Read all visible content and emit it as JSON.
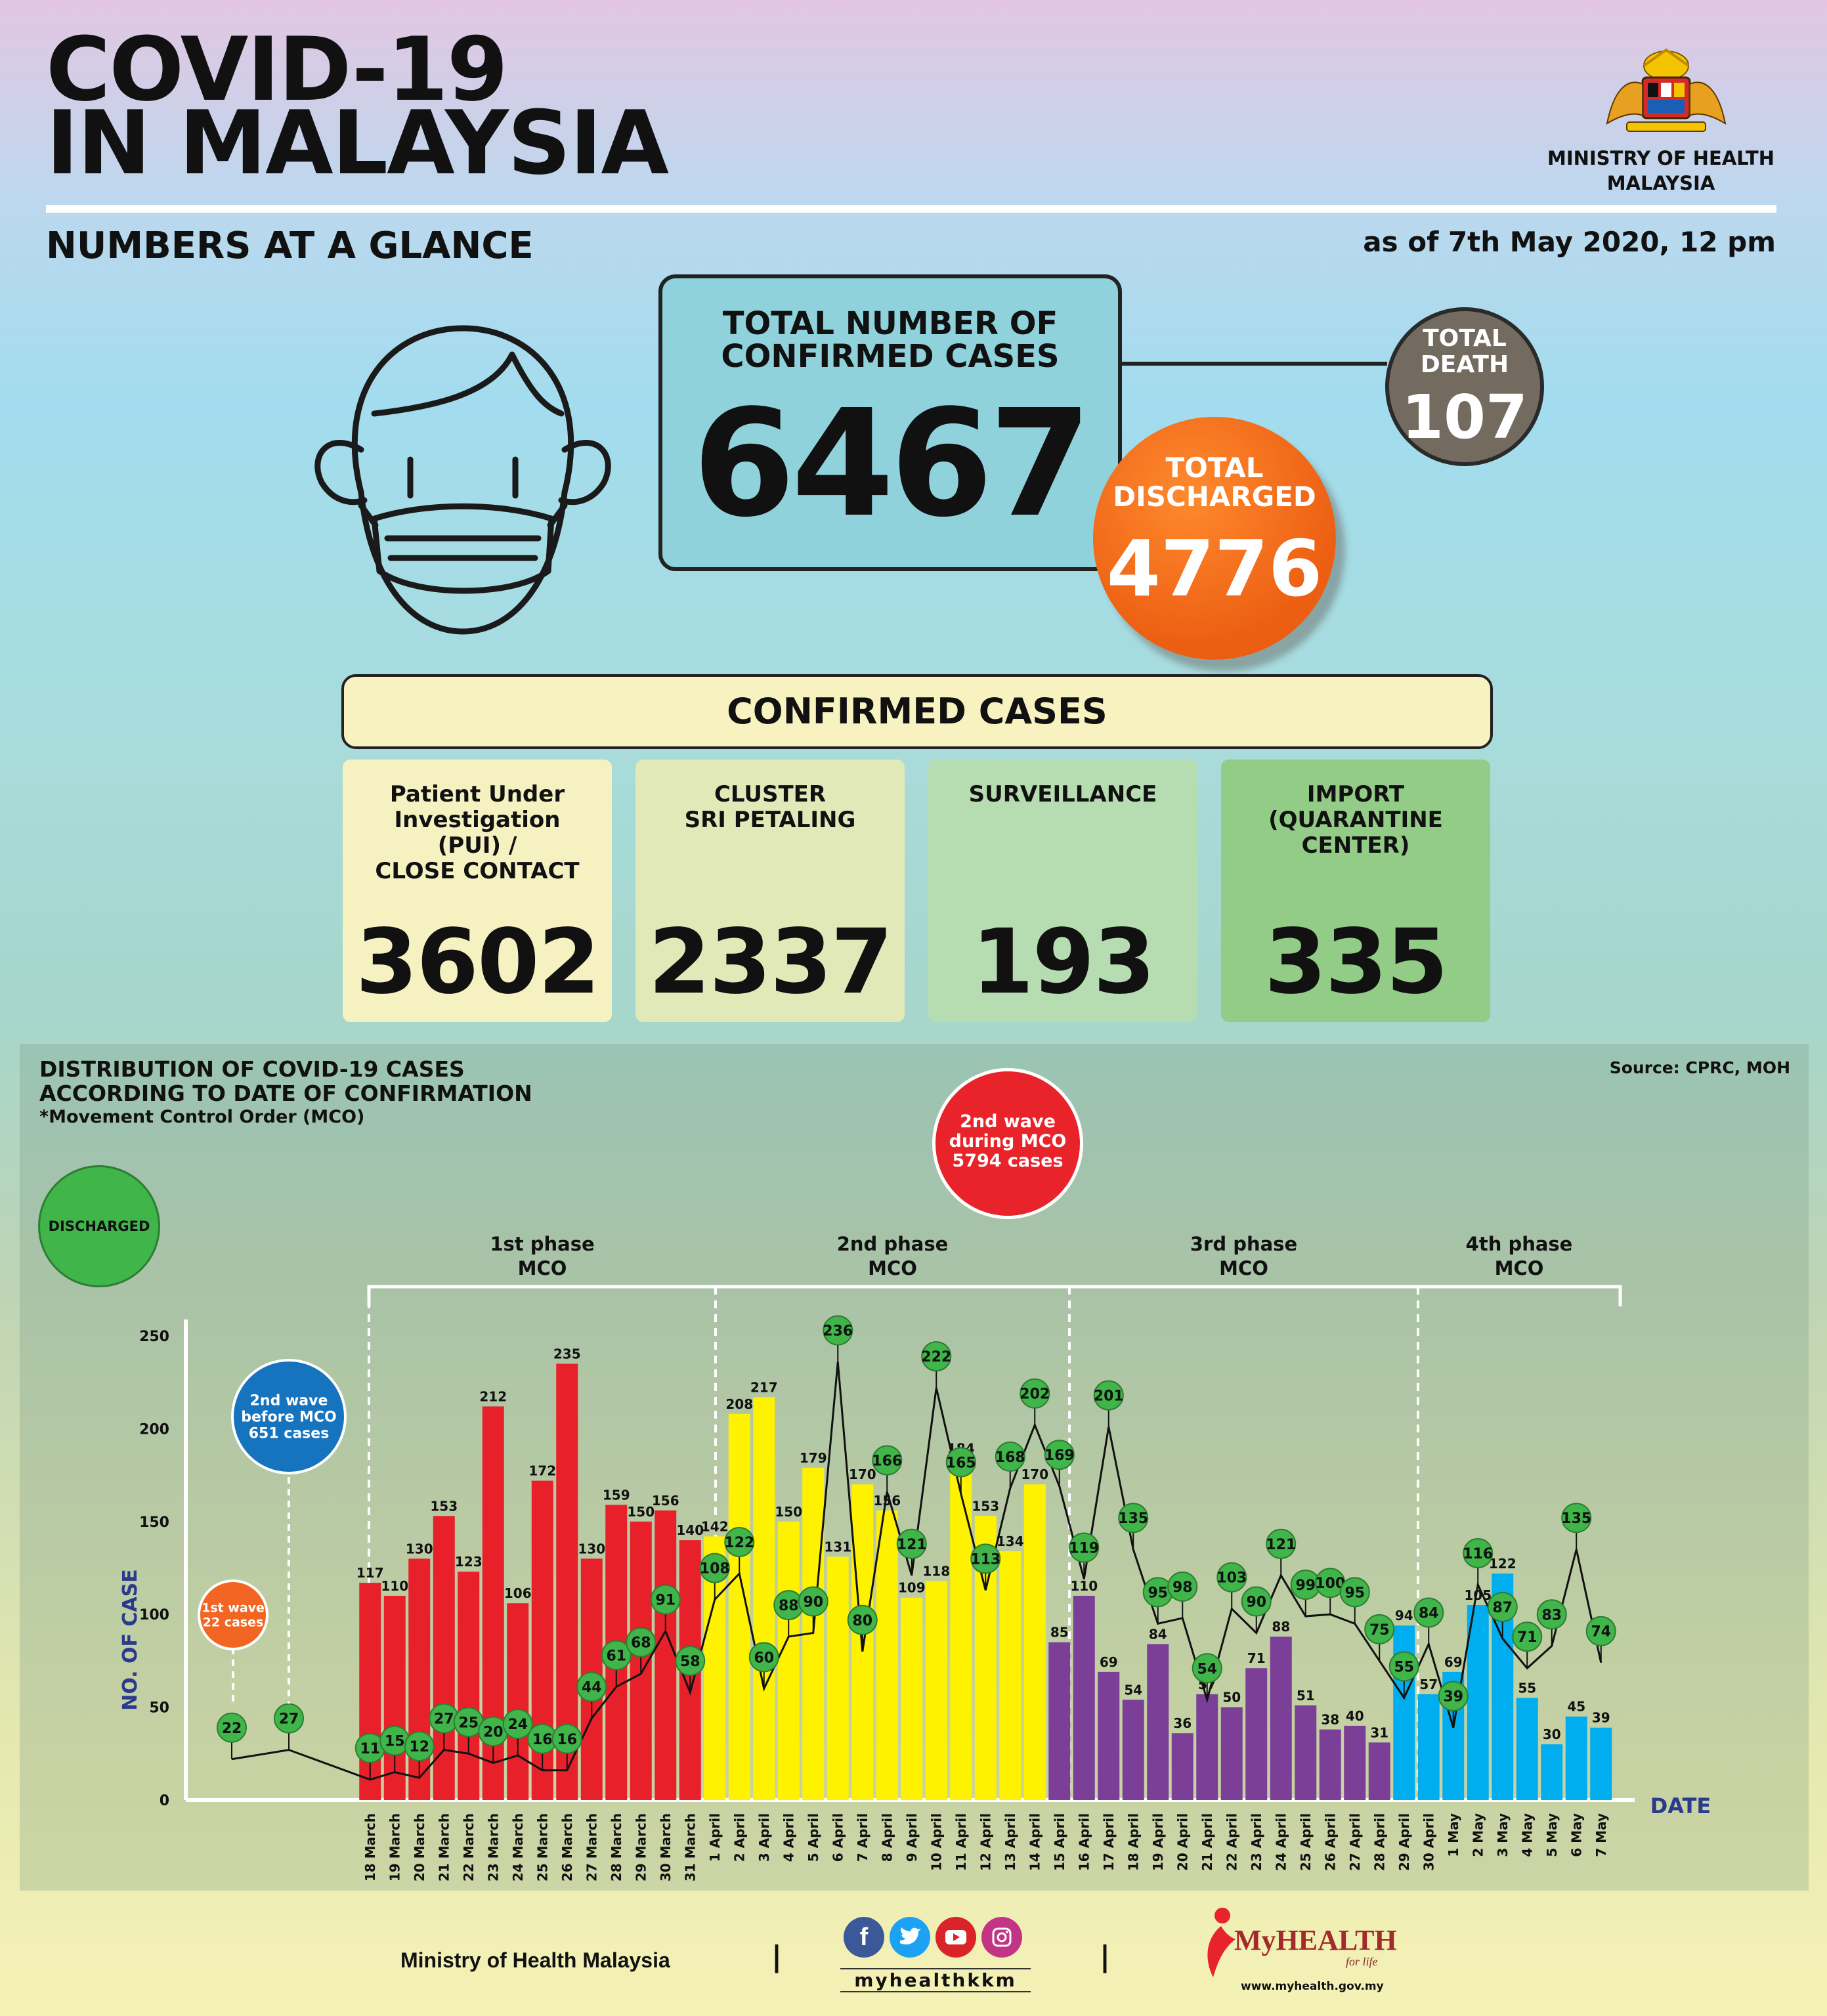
{
  "header": {
    "title_line1": "COVID-19",
    "title_line2": "IN MALAYSIA",
    "ministry_line1": "MINISTRY OF HEALTH",
    "ministry_line2": "MALAYSIA",
    "subtitle": "NUMBERS AT A GLANCE",
    "as_of": "as of 7th May 2020, 12 pm"
  },
  "totals": {
    "confirmed_label_1": "TOTAL NUMBER OF",
    "confirmed_label_2": "CONFIRMED CASES",
    "confirmed_value": "6467",
    "death_label_1": "TOTAL",
    "death_label_2": "DEATH",
    "death_value": "107",
    "discharged_label_1": "TOTAL",
    "discharged_label_2": "DISCHARGED",
    "discharged_value": "4776"
  },
  "confirmed_cases": {
    "heading": "CONFIRMED CASES",
    "cards": [
      {
        "label_lines": [
          "Patient Under",
          "Investigation",
          "(PUI) /",
          "CLOSE CONTACT"
        ],
        "value": "3602",
        "color": "#f5f1c0"
      },
      {
        "label_lines": [
          "CLUSTER",
          "SRI PETALING"
        ],
        "value": "2337",
        "color": "#e2e9b8"
      },
      {
        "label_lines": [
          "SURVEILLANCE"
        ],
        "value": "193",
        "color": "#b6dcb2"
      },
      {
        "label_lines": [
          "IMPORT",
          "(QUARANTINE",
          "CENTER)"
        ],
        "value": "335",
        "color": "#92cc86"
      }
    ]
  },
  "chart": {
    "title_line1": "DISTRIBUTION OF COVID-19 CASES",
    "title_line2": "ACCORDING TO DATE OF CONFIRMATION",
    "note": "*Movement Control Order (MCO)",
    "source": "Source: CPRC, MOH",
    "legend_discharged": "DISCHARGED",
    "wave2_mco_lines": [
      "2nd wave",
      "during MCO",
      "5794 cases"
    ],
    "wave2_before_lines": [
      "2nd wave",
      "before MCO",
      "651 cases"
    ],
    "wave1_lines": [
      "1st wave",
      "22 cases"
    ],
    "phases": [
      {
        "name": "1st phase",
        "sub": "MCO"
      },
      {
        "name": "2nd phase",
        "sub": "MCO"
      },
      {
        "name": "3rd phase",
        "sub": "MCO"
      },
      {
        "name": "4th phase",
        "sub": "MCO"
      }
    ]
  },
  "chart_data": {
    "type": "bar",
    "title": "DISTRIBUTION OF COVID-19 CASES ACCORDING TO DATE OF CONFIRMATION",
    "xlabel": "DATE",
    "ylabel": "NO. OF CASE",
    "ylim": [
      0,
      250
    ],
    "yticks": [
      0,
      50,
      100,
      150,
      200,
      250
    ],
    "pre_mco_discharged": [
      22,
      27
    ],
    "categories": [
      "18 March",
      "19 March",
      "20 March",
      "21 March",
      "22 March",
      "23 March",
      "24 March",
      "25 March",
      "26 March",
      "27 March",
      "28 March",
      "29 March",
      "30 March",
      "31 March",
      "1 April",
      "2 April",
      "3 April",
      "4 April",
      "5 April",
      "6 April",
      "7 April",
      "8 April",
      "9 April",
      "10 April",
      "11 April",
      "12 April",
      "13 April",
      "14 April",
      "15 April",
      "16 April",
      "17 April",
      "18 April",
      "19 April",
      "20 April",
      "21 April",
      "22 April",
      "23 April",
      "24 April",
      "25 April",
      "26 April",
      "27 April",
      "28 April",
      "29 April",
      "30 April",
      "1 May",
      "2 May",
      "3 May",
      "4 May",
      "5 May",
      "6 May",
      "7 May"
    ],
    "series": [
      {
        "name": "Confirmed",
        "values": [
          117,
          110,
          130,
          153,
          123,
          212,
          106,
          172,
          235,
          130,
          159,
          150,
          156,
          140,
          142,
          208,
          217,
          150,
          179,
          131,
          170,
          156,
          109,
          118,
          184,
          153,
          134,
          170,
          85,
          110,
          69,
          54,
          84,
          36,
          57,
          50,
          71,
          88,
          51,
          38,
          40,
          31,
          94,
          57,
          69,
          105,
          122,
          55,
          30,
          45,
          39
        ]
      },
      {
        "name": "DISCHARGED",
        "values": [
          11,
          15,
          12,
          27,
          25,
          20,
          24,
          16,
          16,
          44,
          61,
          68,
          91,
          58,
          108,
          122,
          60,
          88,
          90,
          236,
          80,
          166,
          121,
          222,
          165,
          113,
          168,
          202,
          169,
          119,
          201,
          135,
          95,
          98,
          54,
          103,
          90,
          121,
          99,
          100,
          95,
          75,
          55,
          84,
          39,
          116,
          87,
          71,
          83,
          135,
          74
        ]
      }
    ],
    "phase_colors": [
      "#e8202a",
      "#fff200",
      "#7b3f98",
      "#00aeef"
    ],
    "phase_ranges": [
      [
        0,
        13
      ],
      [
        14,
        27
      ],
      [
        28,
        41
      ],
      [
        42,
        50
      ]
    ],
    "grid": false
  },
  "footer": {
    "ministry": "Ministry of Health Malaysia",
    "handle": "myhealthkkm",
    "brand": "MyHEALTH",
    "tagline": "for life",
    "url": "www.myhealth.gov.my",
    "separator": "|"
  }
}
